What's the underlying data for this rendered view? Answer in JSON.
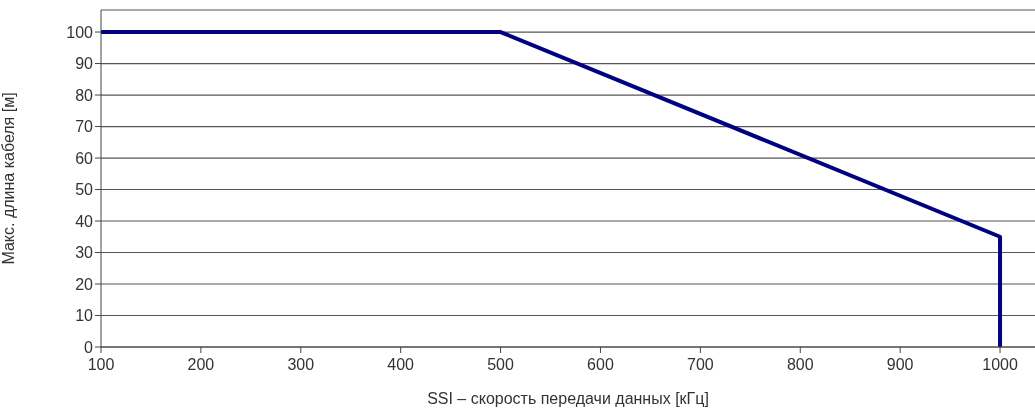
{
  "chart_data": {
    "type": "line",
    "xlabel": "SSI – скорость передачи данных [кГц]",
    "ylabel": "Макс. длина кабеля [м]",
    "series": [
      {
        "color": "#000080",
        "x": [
          100,
          500,
          1000,
          1000
        ],
        "values": [
          100,
          100,
          35,
          0
        ]
      }
    ],
    "xlim": [
      100,
      1035
    ],
    "xticks": [
      100,
      200,
      300,
      400,
      500,
      600,
      700,
      800,
      900,
      1000
    ],
    "ylim": [
      0,
      107
    ],
    "yticks": [
      0,
      10,
      20,
      30,
      40,
      50,
      60,
      70,
      80,
      90,
      100
    ],
    "grid": "y",
    "legend": false,
    "marker": "none",
    "line_style": "solid"
  }
}
